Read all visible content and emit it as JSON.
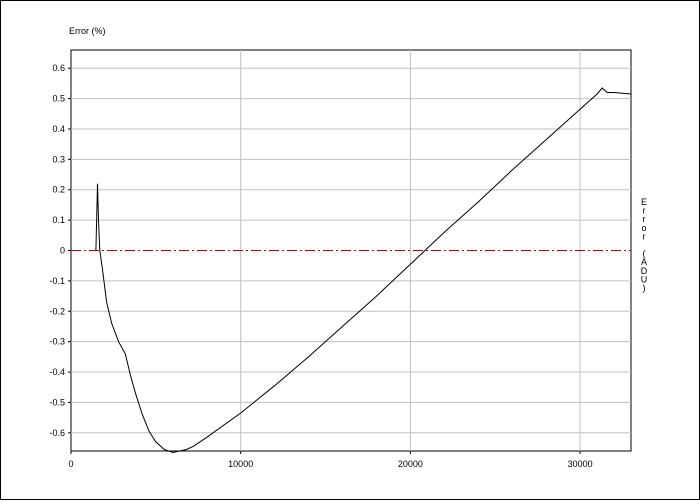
{
  "chart_data": {
    "type": "line",
    "title": "",
    "ylabel": "Error (%)",
    "ylabel_right": "Error (ADU)",
    "xlabel": "",
    "xlim": [
      0,
      33000
    ],
    "ylim": [
      -0.66,
      0.66
    ],
    "x_ticks": [
      0,
      10000,
      20000,
      30000
    ],
    "x_tick_labels": [
      "0",
      "10000",
      "20000",
      "30000"
    ],
    "y_ticks": [
      0.6,
      0.5,
      0.4,
      0.3,
      0.2,
      0.1,
      0,
      -0.1,
      -0.2,
      -0.3,
      -0.4,
      -0.5,
      -0.6
    ],
    "y_tick_labels": [
      "0.6",
      "0.5",
      "0.4",
      "0.3",
      "0.2",
      "0.1",
      "0",
      "-0.1",
      "-0.2",
      "-0.3",
      "-0.4",
      "-0.5",
      "-0.6"
    ],
    "grid": true,
    "colors": {
      "series": "#000000",
      "reference": "#c00000",
      "grid": "#c0c0c0"
    },
    "series": [
      {
        "x": [
          1470,
          1470,
          1560,
          1620,
          1700,
          1850,
          2100,
          2400,
          2800,
          3200,
          3500,
          3800,
          4200,
          4600,
          5000,
          5500,
          6000,
          6400,
          6800,
          7200,
          8000,
          10000,
          12000,
          14000,
          16000,
          18000,
          20000,
          22000,
          24000,
          26000,
          28000,
          30000,
          31000,
          31300,
          31600,
          32000,
          33000
        ],
        "y": [
          0.0,
          0.0,
          0.22,
          0.1,
          0.0,
          -0.06,
          -0.17,
          -0.24,
          -0.3,
          -0.34,
          -0.41,
          -0.47,
          -0.54,
          -0.595,
          -0.63,
          -0.655,
          -0.665,
          -0.66,
          -0.655,
          -0.645,
          -0.615,
          -0.535,
          -0.445,
          -0.35,
          -0.25,
          -0.15,
          -0.045,
          0.06,
          0.16,
          0.265,
          0.365,
          0.465,
          0.515,
          0.535,
          0.52,
          0.52,
          0.515
        ]
      }
    ],
    "reference_line": {
      "y": 0,
      "style": "dash-dot"
    }
  }
}
